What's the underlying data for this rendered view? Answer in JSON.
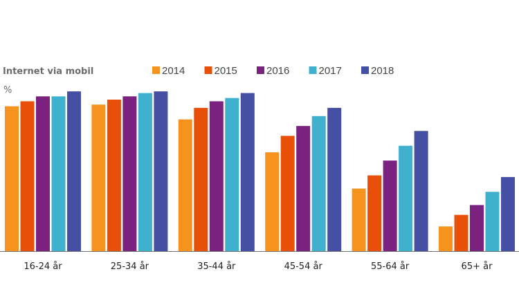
{
  "chart_data": {
    "type": "bar",
    "title": "Internet via mobil",
    "ylabel": "%",
    "ylim": [
      0,
      100
    ],
    "grid": false,
    "legend_placement": "top",
    "categories": [
      "16-24 år",
      "25-34 år",
      "35-44 år",
      "45-54 år",
      "55-64 år",
      "65+ år"
    ],
    "series": [
      {
        "name": "2014",
        "color": "#F6921E",
        "values": [
          88,
          89,
          80,
          60,
          38,
          15
        ]
      },
      {
        "name": "2015",
        "color": "#E8500A",
        "values": [
          91,
          92,
          87,
          70,
          46,
          22
        ]
      },
      {
        "name": "2016",
        "color": "#7B2281",
        "values": [
          94,
          94,
          91,
          76,
          55,
          28
        ]
      },
      {
        "name": "2017",
        "color": "#3FB1CE",
        "values": [
          94,
          96,
          93,
          82,
          64,
          36
        ]
      },
      {
        "name": "2018",
        "color": "#4550A5",
        "values": [
          97,
          97,
          96,
          87,
          73,
          45
        ]
      }
    ]
  }
}
